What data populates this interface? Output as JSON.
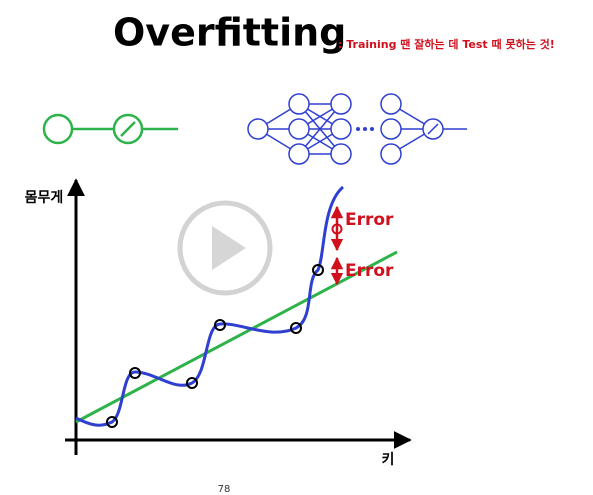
{
  "header": {
    "title": "Overfitting",
    "subtitle": ": Training 땐 잘하는 데 Test 때 못하는 것!"
  },
  "plot": {
    "y_label": "몸무게",
    "x_label": "키",
    "errors": [
      "Error",
      "Error"
    ]
  },
  "footer": {
    "page": "78"
  }
}
